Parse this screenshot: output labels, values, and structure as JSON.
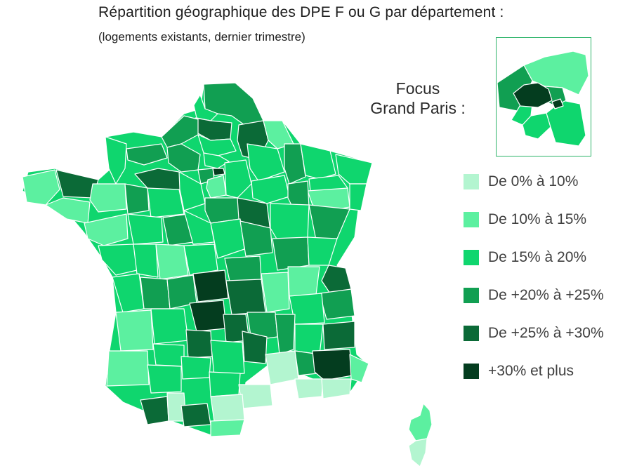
{
  "title": "Répartition géographique des DPE F ou G par département :",
  "subtitle": "(logements existants, dernier trimestre)",
  "focus": {
    "line1": "Focus",
    "line2": "Grand Paris :"
  },
  "legend": [
    {
      "label": "De 0% à 10%",
      "color": "#b3f5d0"
    },
    {
      "label": "De 10% à 15%",
      "color": "#5cf0a0"
    },
    {
      "label": "De 15% à 20%",
      "color": "#0fd66e"
    },
    {
      "label": "De +20% à +25%",
      "color": "#119f52"
    },
    {
      "label": "De +25% à +30%",
      "color": "#0b6a37"
    },
    {
      "label": "+30% et plus",
      "color": "#043d1f"
    }
  ],
  "colors": {
    "border": "#ffffff",
    "inset_frame": "#2eb46a"
  }
}
